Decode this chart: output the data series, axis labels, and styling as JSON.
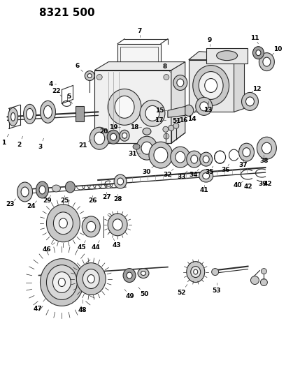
{
  "title": "8321 500",
  "bg_color": "#ffffff",
  "fig_width": 4.1,
  "fig_height": 5.33,
  "dpi": 100,
  "line_color": "#2a2a2a",
  "gray_light": "#c8c8c8",
  "gray_mid": "#a0a0a0",
  "gray_dark": "#707070"
}
